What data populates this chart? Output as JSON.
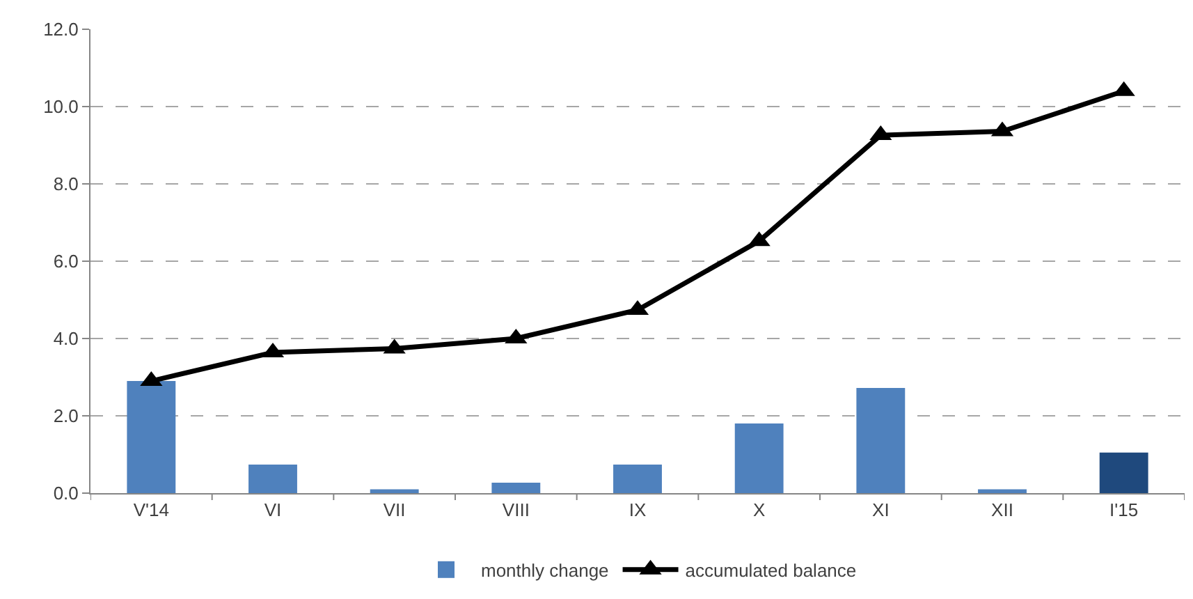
{
  "chart_data": {
    "type": "bar",
    "categories": [
      "V'14",
      "VI",
      "VII",
      "VIII",
      "IX",
      "X",
      "XI",
      "XII",
      "I'15"
    ],
    "series": [
      {
        "name": "monthly change",
        "colors": [
          "#4f81bd",
          "#4f81bd",
          "#4f81bd",
          "#4f81bd",
          "#4f81bd",
          "#4f81bd",
          "#4f81bd",
          "#4f81bd",
          "#1f497d"
        ],
        "values": [
          2.9,
          0.74,
          0.1,
          0.27,
          0.74,
          1.8,
          2.72,
          0.1,
          1.05
        ]
      },
      {
        "name": "accumulated balance",
        "type": "line",
        "color": "#000000",
        "marker": "triangle",
        "line_style": "solid",
        "values": [
          2.9,
          3.64,
          3.74,
          4.0,
          4.74,
          6.52,
          9.26,
          9.36,
          10.4
        ]
      }
    ],
    "ylim": [
      0,
      12
    ],
    "yticks": [
      {
        "value": 0,
        "label": "0.0"
      },
      {
        "value": 2,
        "label": "2.0"
      },
      {
        "value": 4,
        "label": "4.0"
      },
      {
        "value": 6,
        "label": "6.0"
      },
      {
        "value": 8,
        "label": "8.0"
      },
      {
        "value": 10,
        "label": "10.0"
      },
      {
        "value": 12,
        "label": "12.0"
      }
    ],
    "grid": "y",
    "legend": "bottom"
  }
}
